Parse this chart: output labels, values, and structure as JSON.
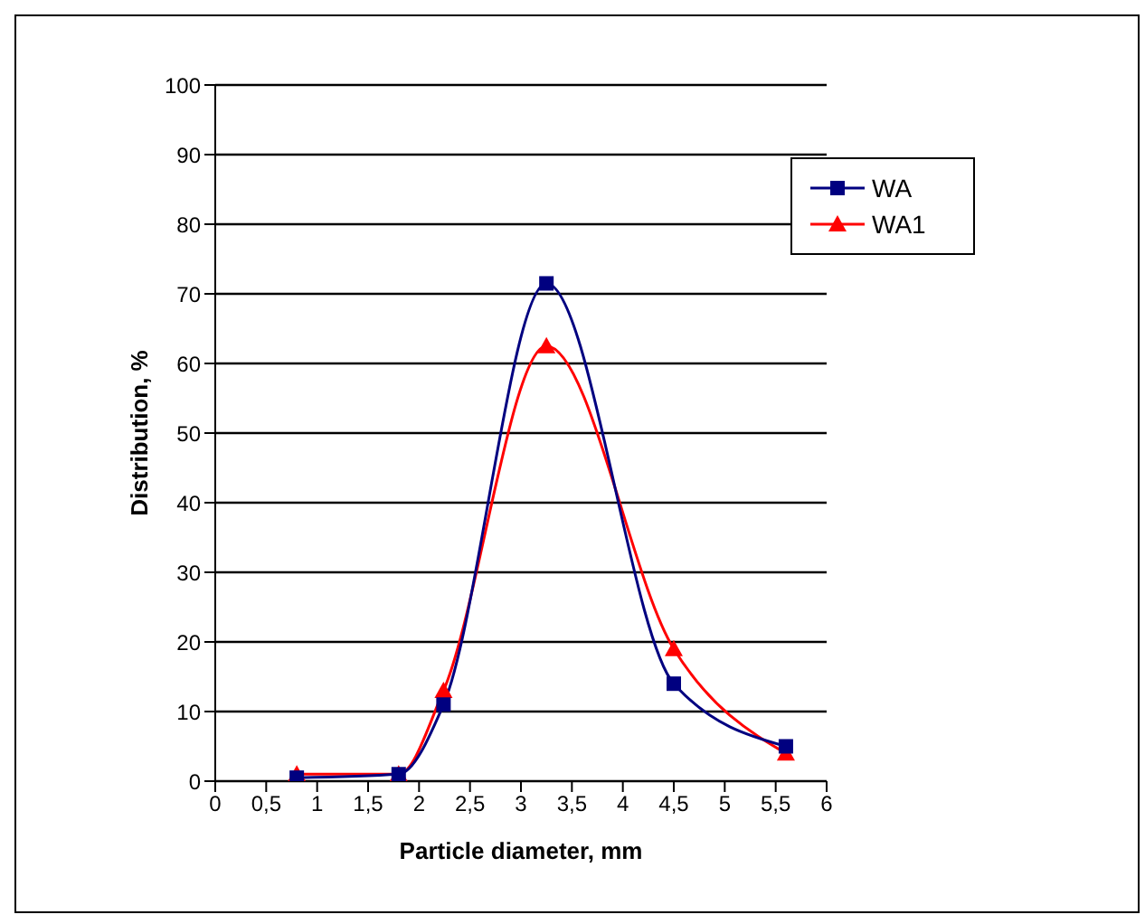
{
  "chart_data": {
    "type": "line",
    "xlabel": "Particle diameter, mm",
    "ylabel": "Distribution, %",
    "x": [
      0.8,
      1.8,
      2.24,
      3.25,
      4.5,
      5.6
    ],
    "series": [
      {
        "name": "WA",
        "color": "#000080",
        "marker": "square",
        "values": [
          0.5,
          1,
          11,
          71.5,
          14,
          5
        ]
      },
      {
        "name": "WA1",
        "color": "#ff0000",
        "marker": "triangle",
        "values": [
          1,
          1,
          13,
          62.5,
          19,
          4
        ]
      }
    ],
    "xlim": [
      0,
      6
    ],
    "xticks": [
      0,
      {
        "value": 0.5,
        "label": "0,5"
      },
      1,
      {
        "value": 1.5,
        "label": "1,5"
      },
      2,
      {
        "value": 2.5,
        "label": "2,5"
      },
      3,
      {
        "value": 3.5,
        "label": "3,5"
      },
      4,
      {
        "value": 4.5,
        "label": "4,5"
      },
      5,
      {
        "value": 5.5,
        "label": "5,5"
      },
      6
    ],
    "ylim": [
      0,
      100
    ],
    "yticks": [
      0,
      10,
      20,
      30,
      40,
      50,
      60,
      70,
      80,
      90,
      100
    ],
    "grid": "y",
    "legend": "top right",
    "line_style": "solid"
  }
}
